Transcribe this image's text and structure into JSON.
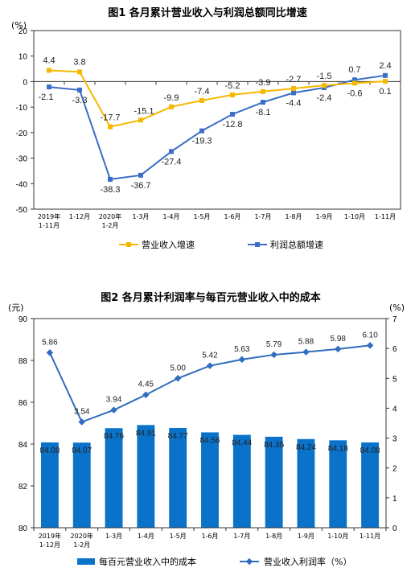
{
  "chart_data": [
    {
      "type": "line",
      "title": "图1  各月累计营业收入与利润总额同比增速",
      "ylabel": "(%)",
      "ylim": [
        -50,
        20
      ],
      "yticks": [
        20,
        10,
        0,
        -10,
        -20,
        -30,
        -40,
        -50
      ],
      "categories": [
        "2019年\n1-11月",
        "1-12月",
        "2020年\n1-2月",
        "1-3月",
        "1-4月",
        "1-5月",
        "1-6月",
        "1-7月",
        "1-8月",
        "1-9月",
        "1-10月",
        "1-11月"
      ],
      "series": [
        {
          "name": "营业收入增速",
          "color": "#f5b800",
          "values": [
            4.4,
            3.8,
            -17.7,
            -15.1,
            -9.9,
            -7.4,
            -5.2,
            -3.9,
            -2.7,
            -1.5,
            -0.6,
            0.1
          ]
        },
        {
          "name": "利润总额增速",
          "color": "#3a6ec7",
          "values": [
            -2.1,
            -3.3,
            -38.3,
            -36.7,
            -27.4,
            -19.3,
            -12.8,
            -8.1,
            -4.4,
            -2.4,
            0.7,
            2.4
          ]
        }
      ],
      "labels": {
        "revenue": [
          "4.4",
          "3.8",
          "-17.7",
          "-15.1",
          "-9.9",
          "-7.4",
          "-5.2",
          "-3.9",
          "-2.7",
          "-1.5",
          "-0.6",
          "0.1"
        ],
        "profit": [
          "-2.1",
          "-3.3",
          "-38.3",
          "-36.7",
          "-27.4",
          "-19.3",
          "-12.8",
          "-8.1",
          "-4.4",
          "-2.4",
          "0.7",
          "2.4"
        ]
      }
    },
    {
      "type": "bar",
      "title": "图2  各月累计利润率与每百元营业收入中的成本",
      "ylabel_left": "(元)",
      "ylabel_right": "(%)",
      "ylim_left": [
        80,
        90
      ],
      "yticks_left": [
        90,
        88,
        86,
        84,
        82,
        80
      ],
      "ylim_right": [
        0,
        7
      ],
      "yticks_right": [
        7,
        6,
        5,
        4,
        3,
        2,
        1,
        0
      ],
      "categories": [
        "2019年\n1-12月",
        "2020年\n1-2月",
        "1-3月",
        "1-4月",
        "1-5月",
        "1-6月",
        "1-7月",
        "1-8月",
        "1-9月",
        "1-10月",
        "1-11月"
      ],
      "bar_series": {
        "name": "每百元营业收入中的成本",
        "color": "#0b72c9",
        "values": [
          84.08,
          84.07,
          84.76,
          84.91,
          84.77,
          84.56,
          84.44,
          84.35,
          84.24,
          84.18,
          84.08
        ],
        "labels": [
          "84.08",
          "84.07",
          "84.76",
          "84.91",
          "84.77",
          "84.56",
          "84.44",
          "84.35",
          "84.24",
          "84.18",
          "84.08"
        ]
      },
      "line_series": {
        "name": "营业收入利润率（%）",
        "color": "#2f6dbd",
        "values": [
          5.86,
          3.54,
          3.94,
          4.45,
          5.0,
          5.42,
          5.63,
          5.79,
          5.88,
          5.98,
          6.1
        ],
        "labels": [
          "5.86",
          "3.54",
          "3.94",
          "4.45",
          "5.00",
          "5.42",
          "5.63",
          "5.79",
          "5.88",
          "5.98",
          "6.10"
        ]
      }
    }
  ]
}
